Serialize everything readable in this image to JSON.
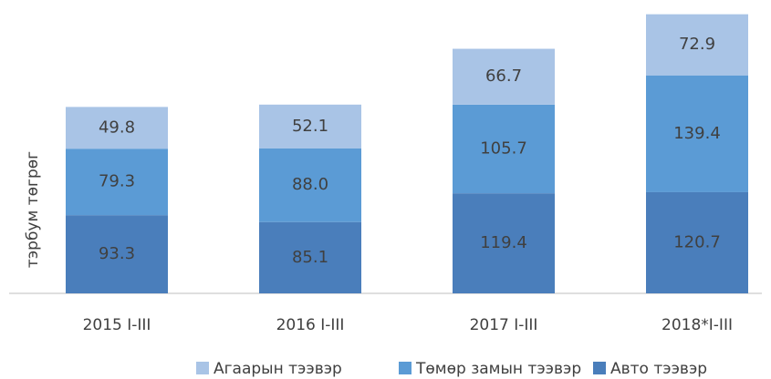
{
  "chart_data": {
    "type": "stacked_bar",
    "y_label": "тэрбум төгрөг",
    "categories": [
      "2015 I-III",
      "2016 I-III",
      "2017 I-III",
      "2018*I-III"
    ],
    "series": [
      {
        "name": "Авто тээвэр",
        "color": "#4a7ebb",
        "values": [
          93.3,
          85.1,
          119.4,
          120.7
        ]
      },
      {
        "name": "Төмөр замын тээвэр",
        "color": "#5b9bd5",
        "values": [
          79.3,
          88.0,
          105.7,
          139.4
        ],
        "value_labels": [
          "79.3",
          "88.0",
          "105.7",
          "139.4"
        ]
      },
      {
        "name": "Агаарын тээвэр",
        "color": "#a9c4e6",
        "values": [
          49.8,
          52.1,
          66.7,
          72.9
        ]
      }
    ],
    "ylim": [
      0,
      350
    ],
    "legend": "bottom"
  }
}
